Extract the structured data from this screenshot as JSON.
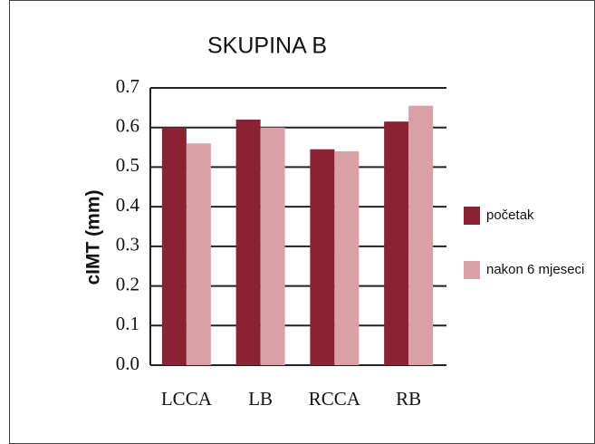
{
  "chart_data": {
    "type": "bar",
    "title": "SKUPINA B",
    "y_label": "cIMT (mm)",
    "categories": [
      "LCCA",
      "LB",
      "RCCA",
      "RB"
    ],
    "series": [
      {
        "name": "početak",
        "color": "#8b2232",
        "values": [
          0.6,
          0.62,
          0.545,
          0.615
        ]
      },
      {
        "name": "nakon 6 mjeseci",
        "color": "#d9a1a6",
        "values": [
          0.56,
          0.6,
          0.54,
          0.655
        ]
      }
    ],
    "ylim": [
      0,
      0.7
    ],
    "yticks": [
      {
        "value": 0,
        "label": "0.0"
      },
      0.1,
      0.2,
      0.3,
      0.4,
      0.5,
      0.6,
      0.7
    ],
    "grid": true
  }
}
